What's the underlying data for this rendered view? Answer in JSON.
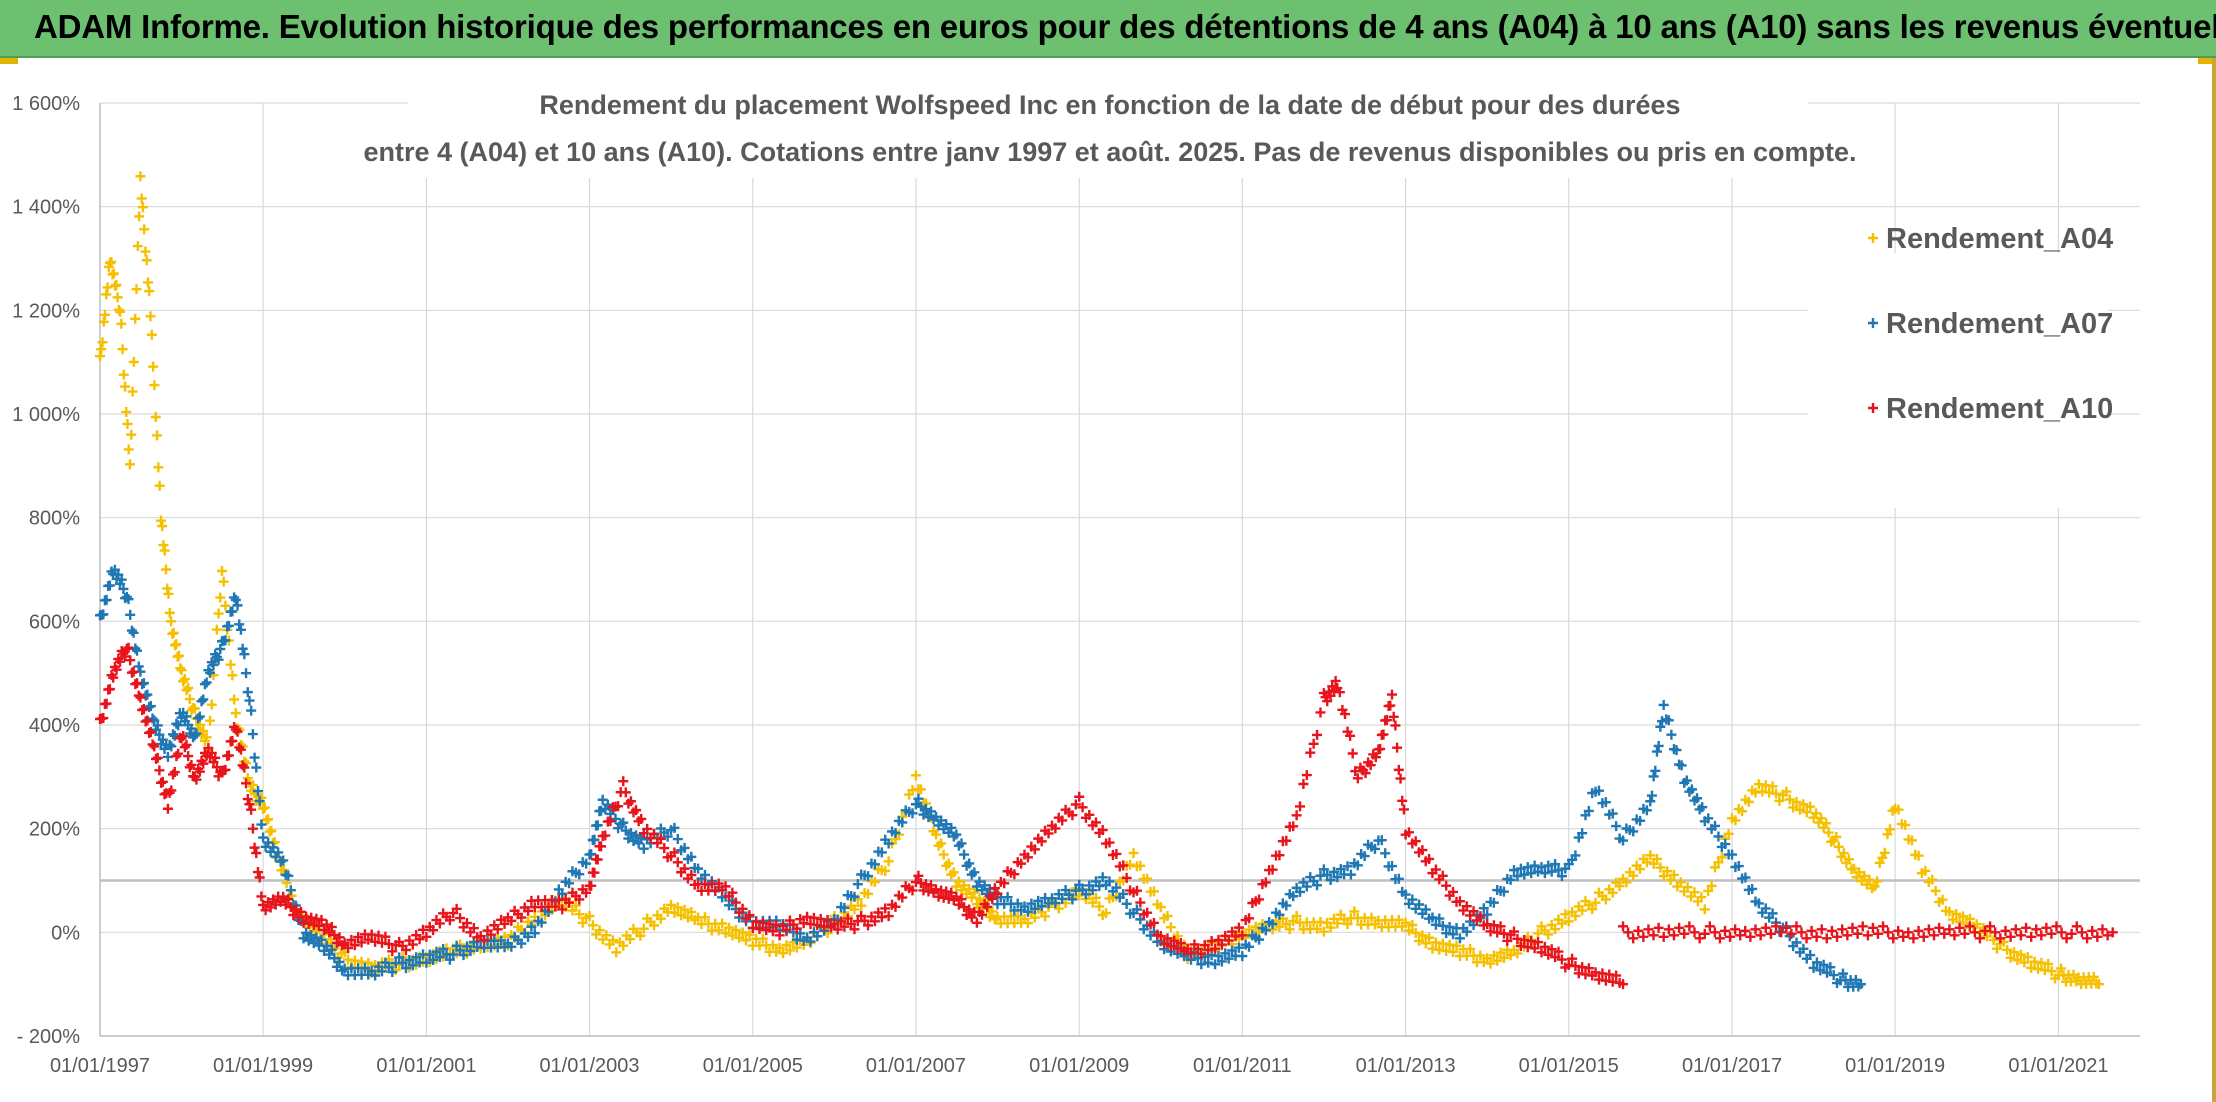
{
  "banner": {
    "title": "ADAM Informe. Evolution historique des performances en euros pour des détentions de 4 ans (A04) à 10 ans (A10) sans les revenus éventuels"
  },
  "colors": {
    "banner_bg": "#6cc070",
    "A04": "#f5c000",
    "A07": "#1f77b4",
    "A10": "#e8141c",
    "gridline": "#d9d9d9",
    "reference_line": "#bfbfbf"
  },
  "chart_data": {
    "type": "scatter",
    "marker": "plus",
    "title_lines": [
      "Rendement du placement Wolfspeed Inc en fonction de la date de début pour des durées",
      "entre 4 (A04) et 10 ans (A10). Cotations entre janv 1997 et août. 2025. Pas de revenus disponibles ou pris en compte."
    ],
    "xlim": [
      "1997-01-01",
      "2022-01-01"
    ],
    "ylim": [
      -200,
      1600
    ],
    "reference_line_y": 100,
    "x_ticks": [
      "01/01/1997",
      "01/01/1999",
      "01/01/2001",
      "01/01/2003",
      "01/01/2005",
      "01/01/2007",
      "01/01/2009",
      "01/01/2011",
      "01/01/2013",
      "01/01/2015",
      "01/01/2017",
      "01/01/2019",
      "01/01/2021"
    ],
    "y_ticks": [
      {
        "value": -200,
        "label": "- 200%"
      },
      {
        "value": 0,
        "label": "0%"
      },
      {
        "value": 200,
        "label": "200%"
      },
      {
        "value": 400,
        "label": "400%"
      },
      {
        "value": 600,
        "label": "600%"
      },
      {
        "value": 800,
        "label": "800%"
      },
      {
        "value": 1000,
        "label": "1 000%"
      },
      {
        "value": 1200,
        "label": "1 200%"
      },
      {
        "value": 1400,
        "label": "1 400%"
      },
      {
        "value": 1600,
        "label": "1 600%"
      }
    ],
    "grid": true,
    "legend_position": "right",
    "series": [
      {
        "name": "Rendement_A04",
        "color": "#f5c000",
        "x": [
          "1997-01-01",
          "1997-02-15",
          "1997-04-01",
          "1997-05-15",
          "1997-07-01",
          "1997-08-15",
          "1997-10-01",
          "1997-11-15",
          "1998-01-01",
          "1998-03-01",
          "1998-05-01",
          "1998-07-01",
          "1998-09-01",
          "1998-11-01",
          "1999-01-01",
          "1999-03-01",
          "1999-06-01",
          "1999-09-01",
          "2000-01-01",
          "2000-05-01",
          "2000-09-01",
          "2001-01-01",
          "2001-05-01",
          "2001-09-01",
          "2002-01-01",
          "2002-05-01",
          "2002-09-01",
          "2003-01-01",
          "2003-05-01",
          "2003-09-01",
          "2004-01-01",
          "2004-05-01",
          "2004-09-01",
          "2005-01-01",
          "2005-05-01",
          "2005-09-01",
          "2006-01-01",
          "2006-05-01",
          "2006-09-01",
          "2007-01-01",
          "2007-04-01",
          "2007-07-01",
          "2007-10-01",
          "2008-01-01",
          "2008-05-01",
          "2008-09-01",
          "2009-01-01",
          "2009-05-01",
          "2009-09-01",
          "2010-01-01",
          "2010-05-01",
          "2010-09-01",
          "2011-01-01",
          "2011-05-01",
          "2011-09-01",
          "2012-01-01",
          "2012-05-01",
          "2012-09-01",
          "2013-01-01",
          "2013-05-01",
          "2013-09-01",
          "2014-01-01",
          "2014-05-01",
          "2014-09-01",
          "2015-01-01",
          "2015-05-01",
          "2015-09-01",
          "2016-01-01",
          "2016-05-01",
          "2016-09-01",
          "2017-01-01",
          "2017-05-01",
          "2017-09-01",
          "2018-01-01",
          "2018-04-01",
          "2018-07-01",
          "2018-10-01",
          "2019-01-01",
          "2019-05-01",
          "2019-09-01",
          "2020-01-01",
          "2020-05-01",
          "2020-09-01",
          "2021-01-01",
          "2021-04-01",
          "2021-07-01"
        ],
        "y": [
          1100,
          1300,
          1200,
          900,
          1450,
          1200,
          800,
          600,
          500,
          420,
          360,
          700,
          420,
          280,
          250,
          150,
          40,
          0,
          -50,
          -70,
          -60,
          -50,
          -40,
          -20,
          -20,
          30,
          60,
          20,
          -30,
          10,
          50,
          20,
          10,
          -20,
          -30,
          -20,
          20,
          60,
          140,
          300,
          180,
          100,
          60,
          30,
          20,
          50,
          80,
          40,
          150,
          40,
          -40,
          -30,
          0,
          10,
          20,
          10,
          30,
          20,
          10,
          -20,
          -40,
          -50,
          -40,
          0,
          30,
          60,
          100,
          140,
          100,
          50,
          220,
          280,
          260,
          230,
          180,
          120,
          80,
          250,
          120,
          40,
          10,
          -30,
          -60,
          -80,
          -90,
          -100
        ]
      },
      {
        "name": "Rendement_A07",
        "color": "#1f77b4",
        "x": [
          "1997-01-01",
          "1997-03-01",
          "1997-05-01",
          "1997-07-01",
          "1997-09-01",
          "1997-11-01",
          "1998-01-01",
          "1998-03-01",
          "1998-05-01",
          "1998-07-01",
          "1998-09-01",
          "1998-11-01",
          "1999-01-01",
          "1999-04-01",
          "1999-07-01",
          "1999-10-01",
          "2000-01-01",
          "2000-05-01",
          "2000-09-01",
          "2001-01-01",
          "2001-05-01",
          "2001-09-01",
          "2002-01-01",
          "2002-05-01",
          "2002-09-01",
          "2003-01-01",
          "2003-03-01",
          "2003-06-01",
          "2003-09-01",
          "2004-01-01",
          "2004-05-01",
          "2004-09-01",
          "2005-01-01",
          "2005-05-01",
          "2005-09-01",
          "2006-01-01",
          "2006-05-01",
          "2006-09-01",
          "2007-01-01",
          "2007-04-01",
          "2007-07-01",
          "2007-10-01",
          "2008-01-01",
          "2008-05-01",
          "2008-09-01",
          "2009-01-01",
          "2009-05-01",
          "2009-09-01",
          "2010-01-01",
          "2010-05-01",
          "2010-09-01",
          "2011-01-01",
          "2011-05-01",
          "2011-09-01",
          "2012-01-01",
          "2012-05-01",
          "2012-09-01",
          "2013-01-01",
          "2013-05-01",
          "2013-09-01",
          "2014-01-01",
          "2014-05-01",
          "2014-09-01",
          "2015-01-01",
          "2015-05-01",
          "2015-09-01",
          "2016-01-01",
          "2016-03-01",
          "2016-06-01",
          "2016-09-01",
          "2017-01-01",
          "2017-05-01",
          "2017-09-01",
          "2018-01-01",
          "2018-05-01",
          "2018-08-01"
        ],
        "y": [
          600,
          700,
          650,
          500,
          400,
          350,
          420,
          380,
          500,
          550,
          650,
          450,
          180,
          130,
          0,
          -30,
          -70,
          -80,
          -60,
          -50,
          -40,
          -20,
          -30,
          10,
          80,
          150,
          250,
          200,
          170,
          200,
          120,
          60,
          20,
          10,
          -10,
          20,
          100,
          180,
          250,
          220,
          180,
          100,
          60,
          50,
          60,
          80,
          100,
          40,
          -20,
          -50,
          -50,
          -40,
          20,
          80,
          110,
          120,
          180,
          70,
          20,
          0,
          40,
          120,
          120,
          120,
          280,
          180,
          250,
          430,
          300,
          220,
          150,
          50,
          0,
          -60,
          -90,
          -100
        ]
      },
      {
        "name": "Rendement_A10",
        "color": "#e8141c",
        "x": [
          "1997-01-01",
          "1997-03-01",
          "1997-05-01",
          "1997-07-01",
          "1997-09-01",
          "1997-11-01",
          "1998-01-01",
          "1998-03-01",
          "1998-05-01",
          "1998-07-01",
          "1998-09-01",
          "1998-11-01",
          "1999-01-01",
          "1999-04-01",
          "1999-07-01",
          "1999-10-01",
          "2000-01-01",
          "2000-05-01",
          "2000-09-01",
          "2001-01-01",
          "2001-05-01",
          "2001-09-01",
          "2002-01-01",
          "2002-05-01",
          "2002-09-01",
          "2003-01-01",
          "2003-03-01",
          "2003-06-01",
          "2003-09-01",
          "2004-01-01",
          "2004-05-01",
          "2004-09-01",
          "2005-01-01",
          "2005-05-01",
          "2005-09-01",
          "2006-01-01",
          "2006-05-01",
          "2006-09-01",
          "2007-01-01",
          "2007-04-01",
          "2007-07-01",
          "2007-10-01",
          "2008-01-01",
          "2008-05-01",
          "2008-09-01",
          "2009-01-01",
          "2009-05-01",
          "2009-09-01",
          "2010-01-01",
          "2010-05-01",
          "2010-09-01",
          "2011-01-01",
          "2011-05-01",
          "2011-09-01",
          "2012-01-01",
          "2012-03-01",
          "2012-06-01",
          "2012-09-01",
          "2012-11-01",
          "2013-01-01",
          "2013-05-01",
          "2013-09-01",
          "2014-01-01",
          "2014-05-01",
          "2014-09-01",
          "2015-01-01",
          "2015-05-01",
          "2015-09-01"
        ],
        "y": [
          400,
          500,
          550,
          450,
          350,
          250,
          380,
          300,
          350,
          300,
          400,
          250,
          50,
          60,
          30,
          10,
          -20,
          -10,
          -30,
          0,
          40,
          -10,
          20,
          60,
          50,
          90,
          180,
          280,
          200,
          150,
          90,
          80,
          20,
          0,
          30,
          10,
          20,
          40,
          100,
          80,
          60,
          30,
          80,
          150,
          200,
          250,
          180,
          80,
          -10,
          -40,
          -20,
          0,
          120,
          220,
          450,
          480,
          300,
          350,
          450,
          200,
          120,
          60,
          10,
          -10,
          -30,
          -60,
          -80,
          -100
        ]
      },
      {
        "name": "Rendement_A10 (plateau 0%)",
        "legend": false,
        "color": "#e8141c",
        "x": [
          "2015-09-01",
          "2016-03-01",
          "2016-09-01",
          "2017-03-01",
          "2017-09-01",
          "2018-03-01",
          "2018-09-01",
          "2019-03-01",
          "2019-09-01",
          "2020-03-01",
          "2020-09-01",
          "2021-03-01",
          "2021-09-01"
        ],
        "y": [
          0,
          0,
          0,
          0,
          0,
          0,
          0,
          0,
          0,
          0,
          0,
          0,
          0
        ]
      }
    ],
    "legend": [
      "Rendement_A04",
      "Rendement_A07",
      "Rendement_A10"
    ]
  }
}
